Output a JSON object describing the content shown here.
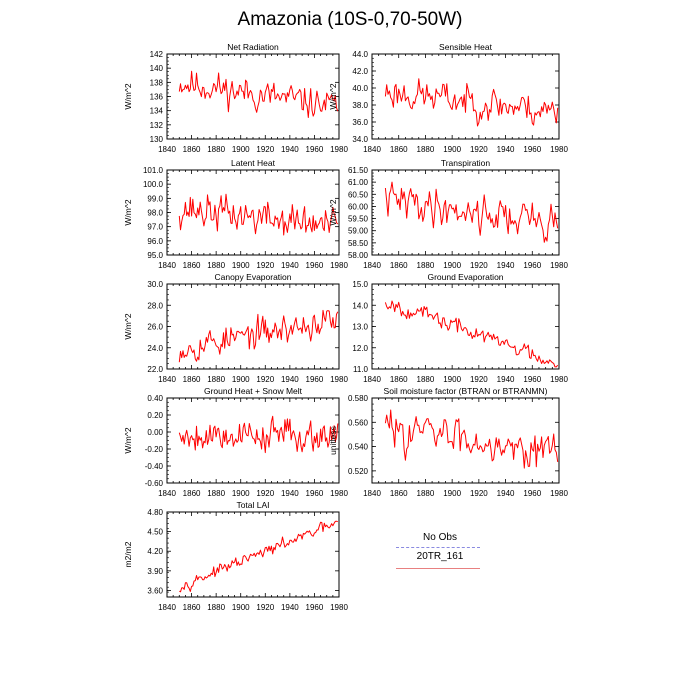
{
  "title": "Amazonia (10S-0,70-50W)",
  "legend": {
    "obs_label": "No Obs",
    "model_label": "20TR_161",
    "obs_color": "#8a8ae0",
    "model_color": "#e88080"
  },
  "series_color": "#ff0000",
  "chart_data": [
    {
      "type": "line",
      "title": "Net Radiation",
      "xlabel": "",
      "ylabel": "W/m^2",
      "xlim": [
        1840,
        1980
      ],
      "xticks": [
        1840,
        1860,
        1880,
        1900,
        1920,
        1940,
        1960,
        1980
      ],
      "ylim": [
        130,
        142
      ],
      "yticks": [
        130,
        132,
        134,
        136,
        138,
        140,
        142
      ],
      "ydec": 0,
      "start_year": 1850,
      "seed": 11,
      "trend": [
        138.0,
        134.5
      ],
      "noise": 1.6,
      "clip": [
        131.5,
        140.8
      ]
    },
    {
      "type": "line",
      "title": "Sensible Heat",
      "xlabel": "",
      "ylabel": "W/m^2",
      "xlim": [
        1840,
        1980
      ],
      "xticks": [
        1840,
        1860,
        1880,
        1900,
        1920,
        1940,
        1960,
        1980
      ],
      "ylim": [
        34,
        44
      ],
      "yticks": [
        34.0,
        36.0,
        38.0,
        40.0,
        42.0,
        44.0
      ],
      "ydec": 1,
      "start_year": 1850,
      "seed": 23,
      "trend": [
        39.6,
        37.2
      ],
      "noise": 1.4,
      "clip": [
        35.2,
        42.6
      ]
    },
    {
      "type": "line",
      "title": "Latent Heat",
      "xlabel": "",
      "ylabel": "W/m^2",
      "xlim": [
        1840,
        1980
      ],
      "xticks": [
        1840,
        1860,
        1880,
        1900,
        1920,
        1940,
        1960,
        1980
      ],
      "ylim": [
        95,
        101
      ],
      "yticks": [
        95.0,
        96.0,
        97.0,
        98.0,
        99.0,
        100.0,
        101.0
      ],
      "ydec": 1,
      "start_year": 1850,
      "seed": 37,
      "trend": [
        98.3,
        97.0
      ],
      "noise": 0.9,
      "clip": [
        95.3,
        100.5
      ]
    },
    {
      "type": "line",
      "title": "Transpiration",
      "xlabel": "",
      "ylabel": "W/m^2",
      "xlim": [
        1840,
        1980
      ],
      "xticks": [
        1840,
        1860,
        1880,
        1900,
        1920,
        1940,
        1960,
        1980
      ],
      "ylim": [
        58,
        61.5
      ],
      "yticks": [
        58.0,
        58.5,
        59.0,
        59.5,
        60.0,
        60.5,
        61.0,
        61.5
      ],
      "ydec": 2,
      "start_year": 1850,
      "seed": 41,
      "trend": [
        60.3,
        59.3
      ],
      "noise": 0.55,
      "clip": [
        58.2,
        61.0
      ]
    },
    {
      "type": "line",
      "title": "Canopy Evaporation",
      "xlabel": "",
      "ylabel": "W/m^2",
      "xlim": [
        1840,
        1980
      ],
      "xticks": [
        1840,
        1860,
        1880,
        1900,
        1920,
        1940,
        1960,
        1980
      ],
      "ylim": [
        22,
        30
      ],
      "yticks": [
        22.0,
        24.0,
        26.0,
        28.0,
        30.0
      ],
      "ydec": 1,
      "start_year": 1850,
      "seed": 53,
      "trend": [
        24.0,
        26.6
      ],
      "noise": 1.0,
      "clip": [
        22.4,
        29.3
      ]
    },
    {
      "type": "line",
      "title": "Ground Evaporation",
      "xlabel": "",
      "ylabel": "",
      "xlim": [
        1840,
        1980
      ],
      "xticks": [
        1840,
        1860,
        1880,
        1900,
        1920,
        1940,
        1960,
        1980
      ],
      "ylim": [
        11,
        15
      ],
      "yticks": [
        11.0,
        12.0,
        13.0,
        14.0,
        15.0
      ],
      "ydec": 1,
      "start_year": 1850,
      "seed": 67,
      "trend": [
        14.2,
        11.3
      ],
      "noise": 0.28,
      "clip": [
        11.1,
        14.7
      ]
    },
    {
      "type": "line",
      "title": "Ground Heat + Snow Melt",
      "xlabel": "",
      "ylabel": "W/m^2",
      "xlim": [
        1840,
        1980
      ],
      "xticks": [
        1840,
        1860,
        1880,
        1900,
        1920,
        1940,
        1960,
        1980
      ],
      "ylim": [
        -0.6,
        0.4
      ],
      "yticks": [
        -0.6,
        -0.4,
        -0.2,
        0.0,
        0.2,
        0.4
      ],
      "ydec": 2,
      "start_year": 1850,
      "seed": 79,
      "trend": [
        -0.03,
        -0.03
      ],
      "noise": 0.14,
      "clip": [
        -0.45,
        0.33
      ]
    },
    {
      "type": "line",
      "title": "Soil moisture factor (BTRAN or BTRANMN)",
      "xlabel": "",
      "ylabel": "unitless",
      "xlim": [
        1840,
        1980
      ],
      "xticks": [
        1840,
        1860,
        1880,
        1900,
        1920,
        1940,
        1960,
        1980
      ],
      "ylim": [
        0.51,
        0.58
      ],
      "yticks": [
        0.52,
        0.54,
        0.56,
        0.58
      ],
      "ydec": 3,
      "start_year": 1850,
      "seed": 83,
      "trend": [
        0.556,
        0.537
      ],
      "noise": 0.011,
      "clip": [
        0.521,
        0.576
      ]
    },
    {
      "type": "line",
      "title": "Total LAI",
      "xlabel": "",
      "ylabel": "m2/m2",
      "xlim": [
        1840,
        1980
      ],
      "xticks": [
        1840,
        1860,
        1880,
        1900,
        1920,
        1940,
        1960,
        1980
      ],
      "ylim": [
        3.5,
        4.8
      ],
      "yticks": [
        3.6,
        3.9,
        4.2,
        4.5,
        4.8
      ],
      "ydec": 2,
      "start_year": 1850,
      "seed": 97,
      "trend": [
        3.66,
        4.64
      ],
      "noise": 0.06,
      "clip": [
        3.58,
        4.66
      ]
    }
  ]
}
